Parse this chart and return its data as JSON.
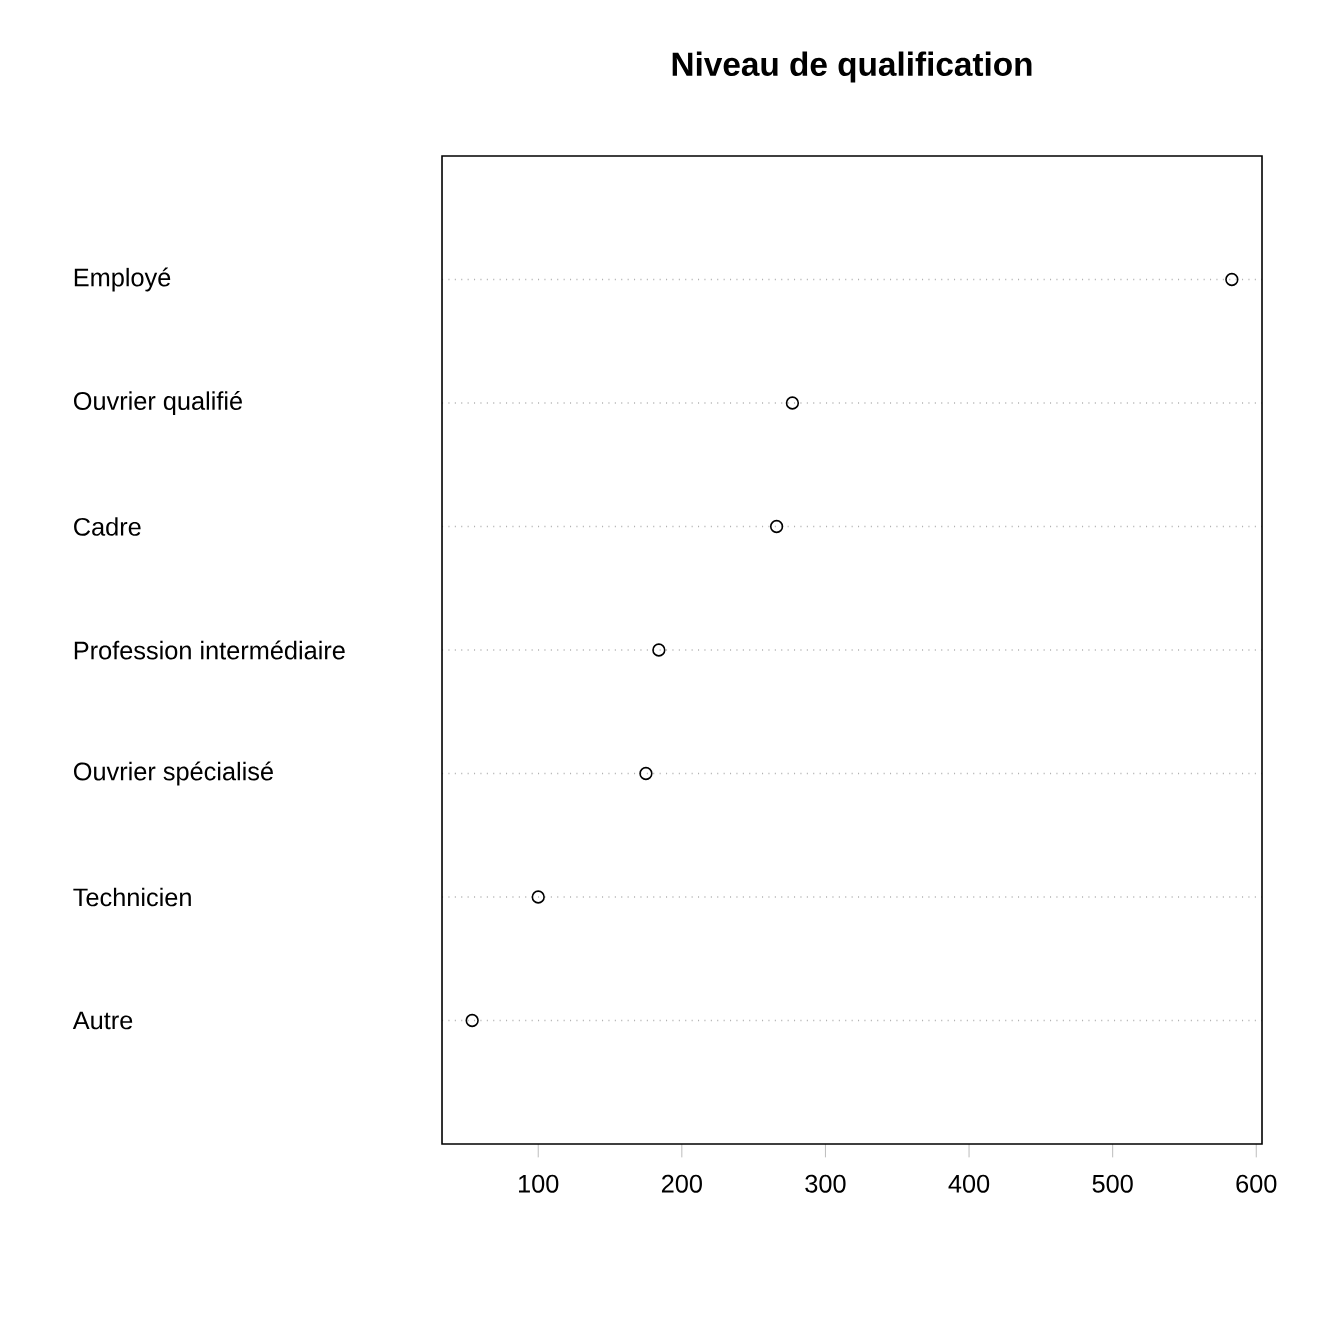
{
  "chart_data": {
    "type": "scatter",
    "orientation": "horizontal",
    "title": "Niveau de qualification",
    "categories": [
      "Employé",
      "Ouvrier qualifié",
      "Cadre",
      "Profession intermédiaire",
      "Ouvrier spécialisé",
      "Technicien",
      "Autre"
    ],
    "values": [
      583,
      277,
      266,
      184,
      175,
      100,
      54
    ],
    "color": "#000000",
    "marker": "circle",
    "grid": "y",
    "xlim": [
      33,
      604
    ],
    "xticks": [
      100,
      200,
      300,
      400,
      500,
      600
    ]
  }
}
